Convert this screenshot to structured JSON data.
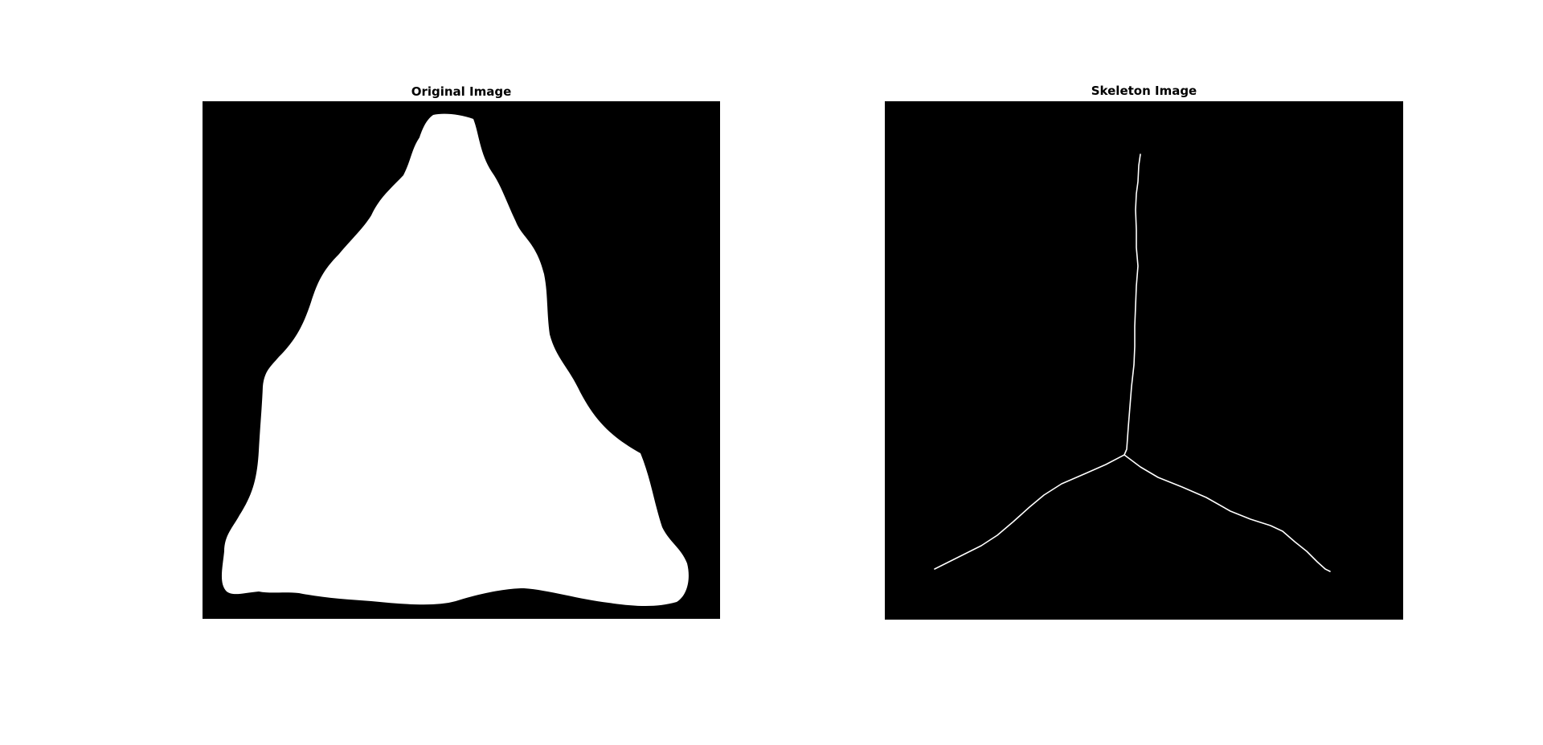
{
  "figure": {
    "background": "#ffffff"
  },
  "panels": [
    {
      "title": "Original Image",
      "image_background": "#000000",
      "shape_color": "#ffffff",
      "content": "binary triangular blob"
    },
    {
      "title": "Skeleton Image",
      "image_background": "#000000",
      "skeleton_color": "#ffffff",
      "content": "three-branch skeleton"
    }
  ]
}
